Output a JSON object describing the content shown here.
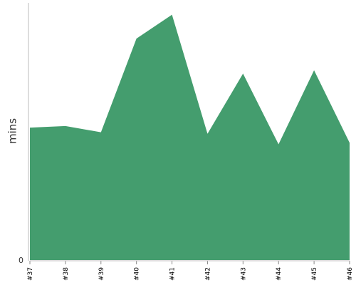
{
  "chart_data": {
    "type": "area",
    "categories": [
      "#37",
      "#38",
      "#39",
      "#40",
      "#41",
      "#42",
      "#43",
      "#44",
      "#45",
      "#46"
    ],
    "values": [
      51.5,
      52.1,
      49.7,
      86.1,
      95.4,
      49.1,
      72.5,
      45.0,
      73.8,
      45.6
    ],
    "ylabel": "mins",
    "xlabel": "",
    "y_tick_labels": [
      "0"
    ],
    "ylim": [
      0,
      100
    ],
    "grid": false,
    "legend": "none",
    "fill_color": "#449d6e",
    "axis_color": "#bbbbbb"
  }
}
